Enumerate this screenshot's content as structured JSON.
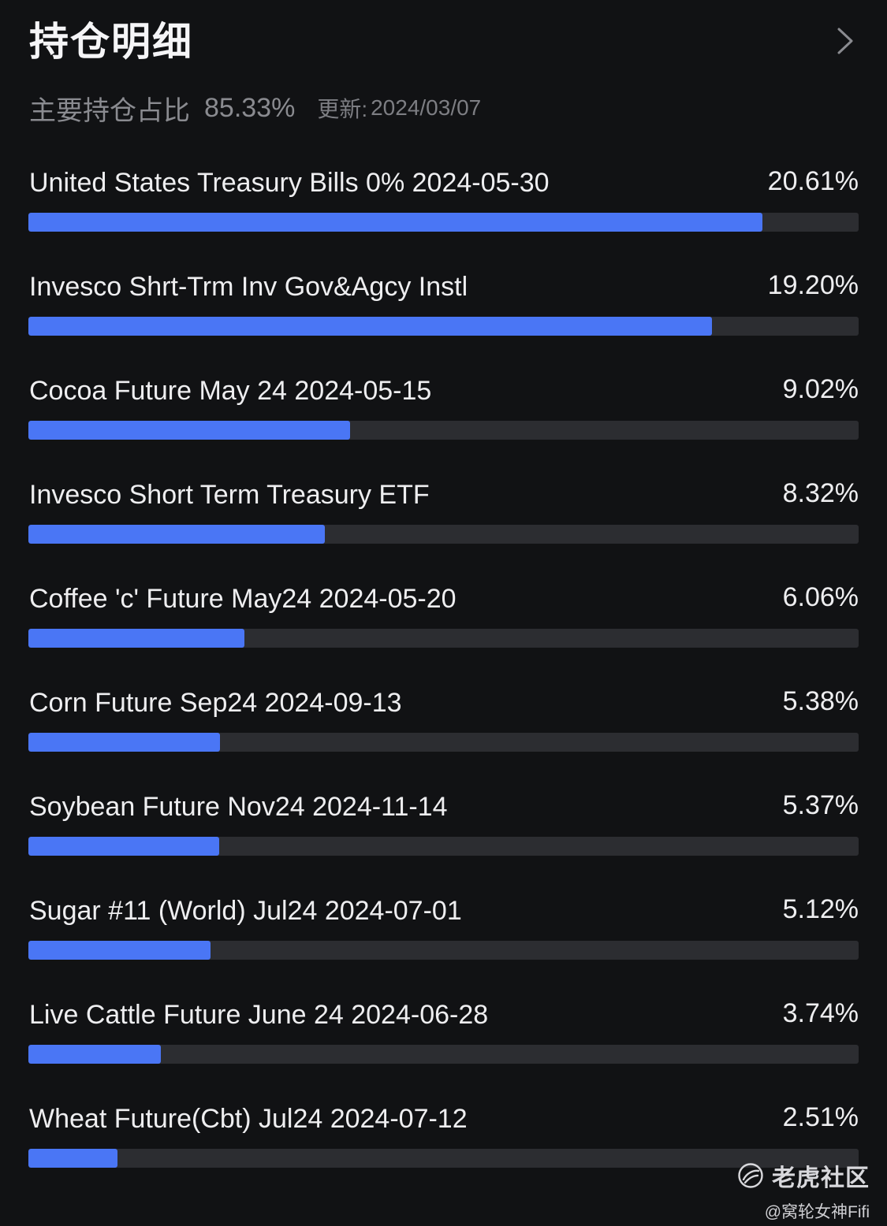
{
  "header": {
    "title": "持仓明细"
  },
  "summary": {
    "label": "主要持仓占比",
    "value": "85.33%",
    "update_label": "更新:",
    "update_date": "2024/03/07"
  },
  "colors": {
    "bar_fill": "#4a76f5",
    "bar_track": "#2c2d31",
    "background": "#111214"
  },
  "holdings": [
    {
      "name": "United States Treasury Bills 0% 2024-05-30",
      "percent_label": "20.61%",
      "bar_fraction": 0.884
    },
    {
      "name": "Invesco Shrt-Trm Inv Gov&Agcy Instl",
      "percent_label": "19.20%",
      "bar_fraction": 0.823
    },
    {
      "name": "Cocoa Future May 24 2024-05-15",
      "percent_label": "9.02%",
      "bar_fraction": 0.387
    },
    {
      "name": "Invesco Short Term Treasury ETF",
      "percent_label": "8.32%",
      "bar_fraction": 0.357
    },
    {
      "name": "Coffee 'c' Future May24 2024-05-20",
      "percent_label": "6.06%",
      "bar_fraction": 0.26
    },
    {
      "name": "Corn Future Sep24 2024-09-13",
      "percent_label": "5.38%",
      "bar_fraction": 0.231
    },
    {
      "name": "Soybean Future Nov24 2024-11-14",
      "percent_label": "5.37%",
      "bar_fraction": 0.23
    },
    {
      "name": "Sugar #11 (World) Jul24 2024-07-01",
      "percent_label": "5.12%",
      "bar_fraction": 0.219
    },
    {
      "name": "Live Cattle Future June 24 2024-06-28",
      "percent_label": "3.74%",
      "bar_fraction": 0.16
    },
    {
      "name": "Wheat Future(Cbt) Jul24 2024-07-12",
      "percent_label": "2.51%",
      "bar_fraction": 0.107
    }
  ],
  "watermark": {
    "brand": "老虎社区",
    "user": "@窝轮女神Fifi",
    "logo_icon": "tiger-logo-icon"
  },
  "icons": {
    "more": "chevron-right-icon"
  }
}
